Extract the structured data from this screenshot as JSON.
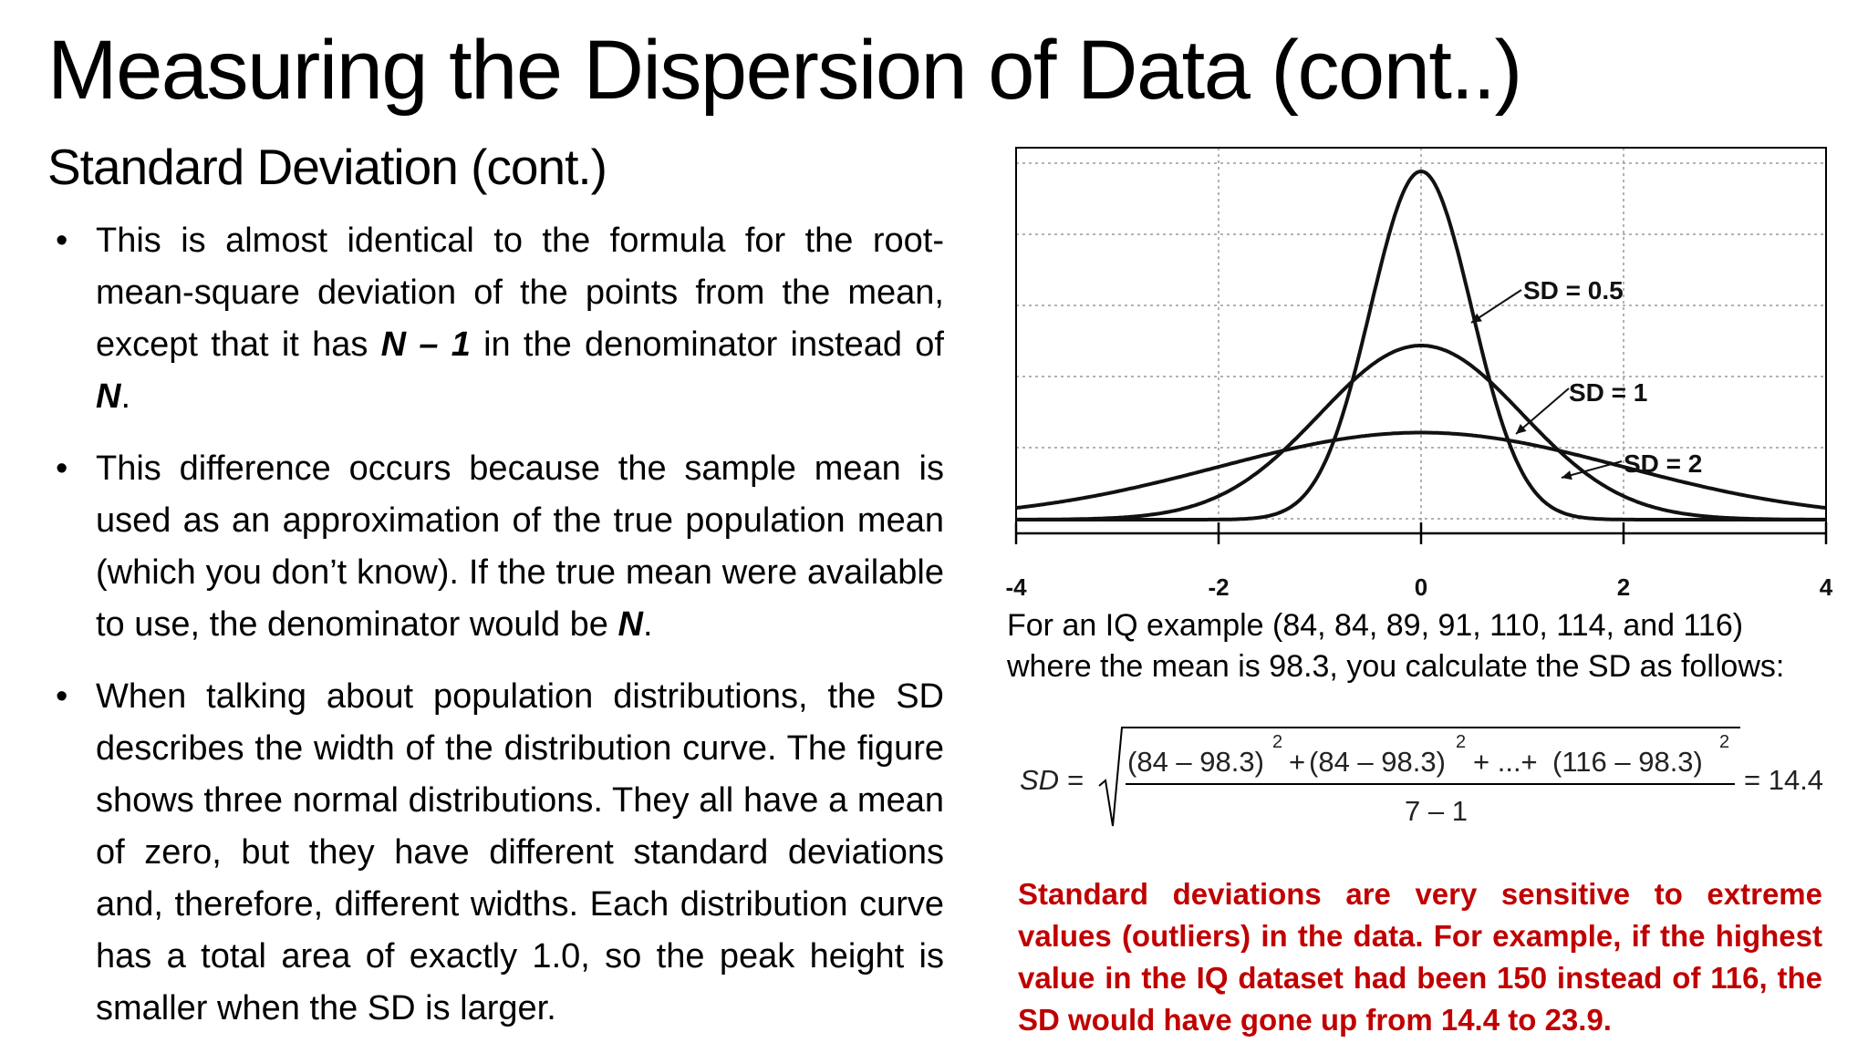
{
  "slide": {
    "title": "Measuring the Dispersion of Data (cont..)",
    "subtitle": "Standard Deviation (cont.)"
  },
  "bullets": [
    {
      "text_before": "This is almost identical to the formula for the root-mean-square deviation of the points from the mean, except that it has ",
      "emph1": "N – 1",
      "text_middle": " in the denominator instead of ",
      "emph2": "N",
      "text_after": "."
    },
    {
      "text_before": "This difference occurs because the sample mean is used as an approximation of the true population mean (which you don’t know). If the true mean were available to use, the denominator would be ",
      "emph1": "N",
      "text_after": "."
    },
    {
      "text": "When talking about population distributions, the SD describes the width of the distribution curve. The figure shows three normal distributions. They all have a mean of zero, but they have different standard deviations and, therefore, different widths. Each distribution curve has a total area of exactly 1.0, so the peak height is smaller when the SD is larger."
    }
  ],
  "chart_data": {
    "type": "line",
    "x_ticks": [
      "-4",
      "-2",
      "0",
      "2",
      "4"
    ],
    "xlim": [
      -4,
      4
    ],
    "grid": true,
    "series": [
      {
        "name": "SD = 0.5",
        "sd": 0.5,
        "mean": 0
      },
      {
        "name": "SD = 1",
        "sd": 1,
        "mean": 0
      },
      {
        "name": "SD = 2",
        "sd": 2,
        "mean": 0
      }
    ]
  },
  "caption": {
    "line1": "For an IQ example (84, 84, 89, 91, 110, 114, and 116)",
    "line2": "where the mean is 98.3, you calculate the SD as follows:"
  },
  "formula": {
    "lhs": "SD =",
    "term1": "(84 – 98.3)",
    "plus1": "+",
    "term2": "(84 – 98.3)",
    "plus2": "+ ...+",
    "term3": "(116 – 98.3)",
    "exp": "2",
    "denominator": "7 – 1",
    "result": "= 14.4"
  },
  "note": "Standard deviations are very sensitive to extreme values (outliers) in the data. For example, if the highest value in the IQ dataset had been 150 instead of 116, the SD would have gone up from 14.4 to 23.9."
}
